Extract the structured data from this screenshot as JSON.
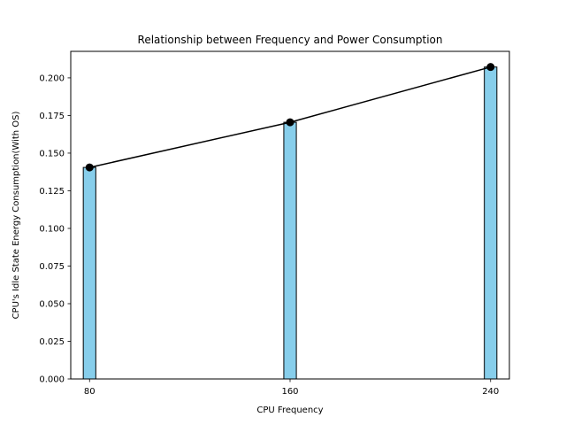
{
  "chart_data": {
    "type": "bar",
    "title": "Relationship between Frequency and Power Consumption",
    "xlabel": "CPU Frequency",
    "ylabel": "CPU's Idle State Energy Consumption(With OS)",
    "x": [
      80,
      160,
      240
    ],
    "values": [
      0.1405,
      0.1705,
      0.2072
    ],
    "xlim": [
      72.5,
      247.5
    ],
    "ylim": [
      0,
      0.2176
    ],
    "yticks": [
      "0.000",
      "0.025",
      "0.050",
      "0.075",
      "0.100",
      "0.125",
      "0.150",
      "0.175",
      "0.200"
    ],
    "xticks": [
      "80",
      "160",
      "240"
    ],
    "bar_width": 5,
    "bar_color": "#87ceeb",
    "bar_edge_color": "#000000",
    "line_color": "#000000",
    "marker": "circle",
    "overlay_line": true,
    "grid": false,
    "legend": false
  }
}
